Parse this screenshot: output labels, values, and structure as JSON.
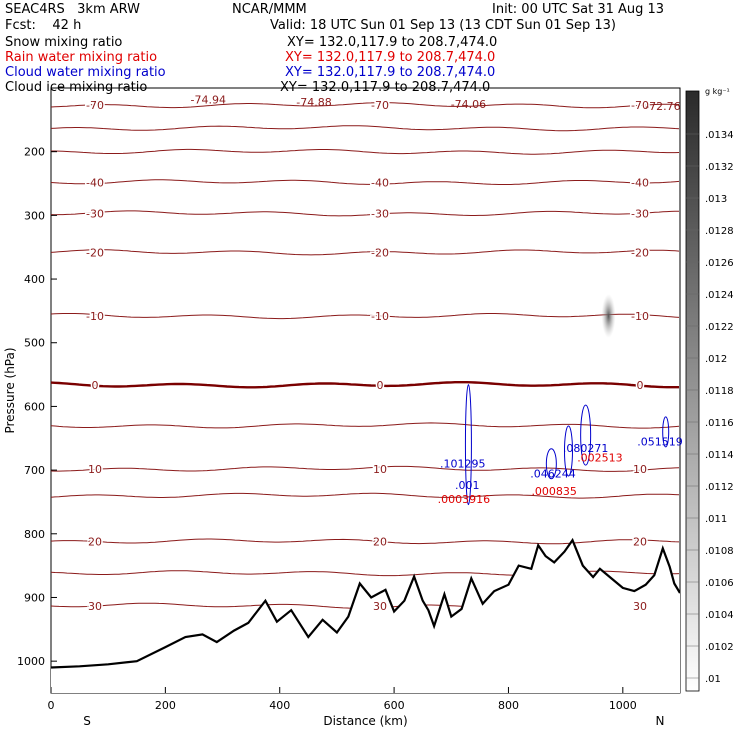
{
  "header": {
    "project": "SEAC4RS   3km ARW",
    "org": "NCAR/MMM",
    "init": "Init: 00 UTC Sat 31 Aug 13",
    "fcst": "Fcst:    42 h",
    "valid": "Valid: 18 UTC Sun 01 Sep 13 (13 CDT Sun 01 Sep 13)",
    "legend": [
      {
        "label": "Snow mixing ratio",
        "xy": "XY= 132.0,117.9 to 208.7,474.0",
        "color": "#000000"
      },
      {
        "label": "Rain water mixing ratio",
        "xy": "XY= 132.0,117.9 to 208.7,474.0",
        "color": "#e00000"
      },
      {
        "label": "Cloud water mixing ratio",
        "xy": "XY= 132.0,117.9 to 208.7,474.0",
        "color": "#0000cc"
      },
      {
        "label": "Cloud ice mixing ratio",
        "xy": "XY= 132.0,117.9 to 208.7,474.0",
        "color": "#000000"
      }
    ]
  },
  "chart_data": {
    "type": "cross-section",
    "xlabel": "Distance (km)",
    "ylabel": "Pressure (hPa)",
    "xlim": [
      0,
      1100
    ],
    "ylim": [
      1050,
      100
    ],
    "x_ticks": [
      0,
      200,
      400,
      600,
      800,
      1000
    ],
    "y_ticks": [
      200,
      300,
      400,
      500,
      600,
      700,
      800,
      900,
      1000
    ],
    "x_end_labels": {
      "left": "S",
      "right": "N"
    },
    "temperature_levels": [
      {
        "value": -70,
        "label": "-70",
        "p": 127
      },
      {
        "value": -60,
        "label": "",
        "p": 163
      },
      {
        "value": -50,
        "label": "",
        "p": 200
      },
      {
        "value": -40,
        "label": "-40",
        "p": 248
      },
      {
        "value": -30,
        "label": "-30",
        "p": 297
      },
      {
        "value": -20,
        "label": "-20",
        "p": 358
      },
      {
        "value": -10,
        "label": "-10",
        "p": 458
      },
      {
        "value": 0,
        "label": "0",
        "p": 566
      },
      {
        "value": 5,
        "label": "",
        "p": 630
      },
      {
        "value": 10,
        "label": "10",
        "p": 698
      },
      {
        "value": 15,
        "label": "",
        "p": 740
      },
      {
        "value": 20,
        "label": "20",
        "p": 812
      },
      {
        "value": 25,
        "label": "",
        "p": 862
      },
      {
        "value": 30,
        "label": "30",
        "p": 913
      }
    ],
    "min_labels": [
      {
        "text": "-74.94",
        "x": 275,
        "p": 118
      },
      {
        "text": "-74.88",
        "x": 460,
        "p": 122
      },
      {
        "text": "-74.06",
        "x": 730,
        "p": 125
      },
      {
        "text": "-72.76",
        "x": 1070,
        "p": 128
      }
    ],
    "cloud_water_maxima": [
      {
        "value": ".101295",
        "x": 720,
        "p": 690
      },
      {
        "value": ".001",
        "x": 728,
        "p": 723
      },
      {
        "value": ".080271",
        "x": 935,
        "p": 665
      },
      {
        "value": ".046244",
        "x": 878,
        "p": 705
      },
      {
        "value": ".051519",
        "x": 1065,
        "p": 655
      }
    ],
    "rain_water_maxima": [
      {
        "value": ".0003916",
        "x": 722,
        "p": 745
      },
      {
        "value": ".002513",
        "x": 960,
        "p": 680
      },
      {
        "value": ".000835",
        "x": 880,
        "p": 733
      }
    ],
    "terrain": [
      [
        0,
        1010
      ],
      [
        50,
        1008
      ],
      [
        100,
        1005
      ],
      [
        150,
        1000
      ],
      [
        200,
        978
      ],
      [
        235,
        962
      ],
      [
        265,
        958
      ],
      [
        290,
        970
      ],
      [
        320,
        952
      ],
      [
        345,
        940
      ],
      [
        375,
        905
      ],
      [
        395,
        938
      ],
      [
        420,
        920
      ],
      [
        450,
        962
      ],
      [
        475,
        935
      ],
      [
        500,
        955
      ],
      [
        520,
        930
      ],
      [
        540,
        878
      ],
      [
        560,
        900
      ],
      [
        585,
        888
      ],
      [
        600,
        922
      ],
      [
        618,
        905
      ],
      [
        635,
        867
      ],
      [
        650,
        905
      ],
      [
        660,
        920
      ],
      [
        670,
        945
      ],
      [
        688,
        895
      ],
      [
        700,
        930
      ],
      [
        718,
        918
      ],
      [
        735,
        870
      ],
      [
        755,
        910
      ],
      [
        775,
        890
      ],
      [
        800,
        880
      ],
      [
        818,
        850
      ],
      [
        840,
        855
      ],
      [
        852,
        818
      ],
      [
        865,
        835
      ],
      [
        880,
        845
      ],
      [
        898,
        828
      ],
      [
        912,
        810
      ],
      [
        930,
        850
      ],
      [
        948,
        868
      ],
      [
        960,
        855
      ],
      [
        980,
        870
      ],
      [
        1000,
        885
      ],
      [
        1020,
        890
      ],
      [
        1040,
        880
      ],
      [
        1055,
        865
      ],
      [
        1070,
        823
      ],
      [
        1082,
        852
      ],
      [
        1090,
        878
      ],
      [
        1100,
        893
      ]
    ],
    "colorbar": {
      "unit": "g kg⁻¹",
      "ticks": [
        ".0134",
        ".0132",
        ".013",
        ".0128",
        ".0126",
        ".0124",
        ".0122",
        ".012",
        ".0118",
        ".0116",
        ".0114",
        ".0112",
        ".011",
        ".0108",
        ".0106",
        ".0104",
        ".0102",
        ".01"
      ]
    }
  }
}
